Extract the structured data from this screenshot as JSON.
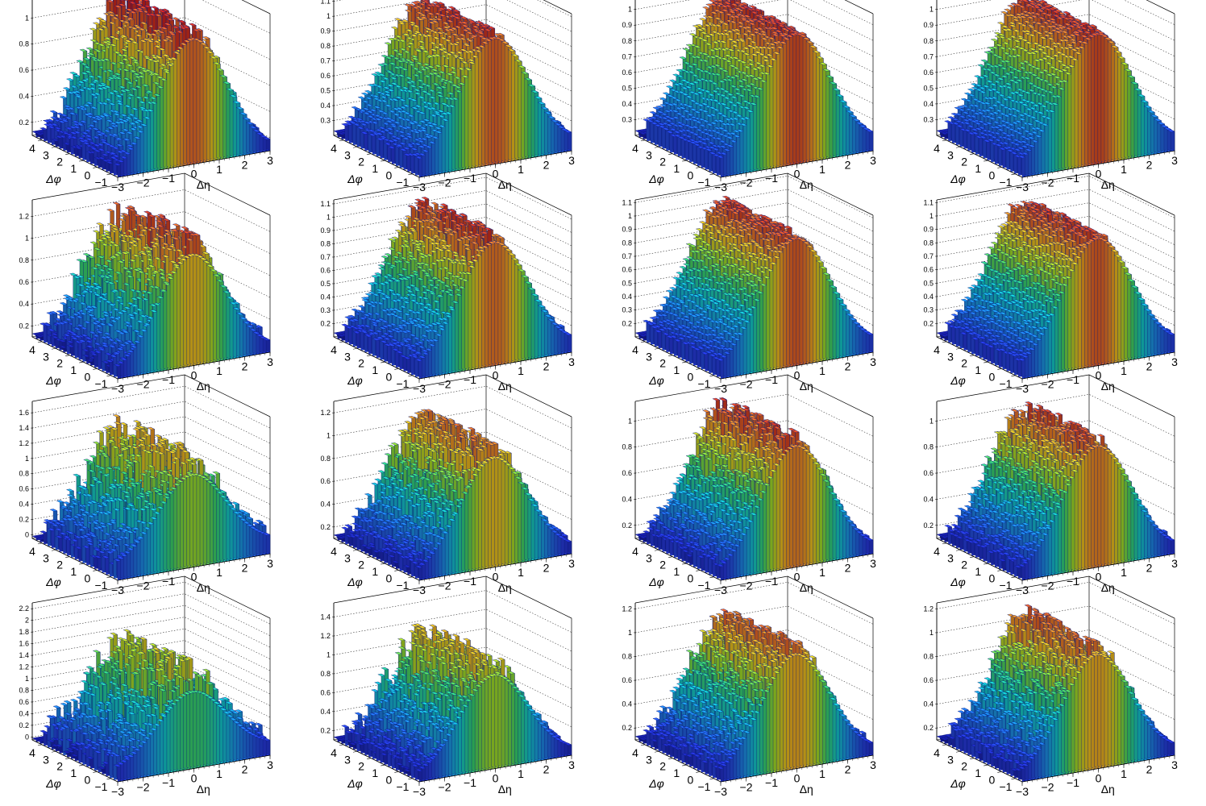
{
  "chart_data": {
    "type": "lego",
    "layout": {
      "rows": 4,
      "cols": 4
    },
    "x_axis": {
      "label": "Δη",
      "range": [
        -3,
        3
      ],
      "ticks": [
        -3,
        -2,
        -1,
        0,
        1,
        2,
        3
      ]
    },
    "y_axis": {
      "label": "Δφ",
      "range": [
        -1.5,
        4.7
      ],
      "ticks": [
        -1,
        0,
        1,
        2,
        3,
        4
      ]
    },
    "colormap": "rainbow",
    "grid": true,
    "panels": [
      {
        "row": 1,
        "col": 1,
        "zlim": [
          0.1,
          1.15
        ],
        "zticks": [
          "0.2",
          "0.4",
          "0.6",
          "0.8",
          "1"
        ],
        "peak": 1.05,
        "base": 0.1,
        "noise": 0.08
      },
      {
        "row": 1,
        "col": 2,
        "zlim": [
          0.2,
          1.12
        ],
        "zticks": [
          "0.3",
          "0.4",
          "0.5",
          "0.6",
          "0.7",
          "0.8",
          "0.9",
          "1",
          "1.1"
        ],
        "peak": 1.04,
        "base": 0.25,
        "noise": 0.04
      },
      {
        "row": 1,
        "col": 3,
        "zlim": [
          0.2,
          1.07
        ],
        "zticks": [
          "0.3",
          "0.4",
          "0.5",
          "0.6",
          "0.7",
          "0.8",
          "0.9",
          "1"
        ],
        "peak": 1.02,
        "base": 0.25,
        "noise": 0.02
      },
      {
        "row": 1,
        "col": 4,
        "zlim": [
          0.2,
          1.07
        ],
        "zticks": [
          "0.3",
          "0.4",
          "0.5",
          "0.6",
          "0.7",
          "0.8",
          "0.9",
          "1"
        ],
        "peak": 1.02,
        "base": 0.25,
        "noise": 0.02
      },
      {
        "row": 2,
        "col": 1,
        "zlim": [
          0.1,
          1.35
        ],
        "zticks": [
          "0.2",
          "0.4",
          "0.6",
          "0.8",
          "1",
          "1.2"
        ],
        "peak": 1.1,
        "base": 0.12,
        "noise": 0.14
      },
      {
        "row": 2,
        "col": 2,
        "zlim": [
          0.1,
          1.13
        ],
        "zticks": [
          "0.2",
          "0.3",
          "0.4",
          "0.5",
          "0.6",
          "0.7",
          "0.8",
          "0.9",
          "1",
          "1.1"
        ],
        "peak": 1.02,
        "base": 0.15,
        "noise": 0.06
      },
      {
        "row": 2,
        "col": 3,
        "zlim": [
          0.1,
          1.12
        ],
        "zticks": [
          "0.2",
          "0.3",
          "0.4",
          "0.5",
          "0.6",
          "0.7",
          "0.8",
          "0.9",
          "1",
          "1.1"
        ],
        "peak": 1.04,
        "base": 0.15,
        "noise": 0.03
      },
      {
        "row": 2,
        "col": 4,
        "zlim": [
          0.1,
          1.12
        ],
        "zticks": [
          "0.2",
          "0.3",
          "0.4",
          "0.5",
          "0.6",
          "0.7",
          "0.8",
          "0.9",
          "1",
          "1.1"
        ],
        "peak": 1.04,
        "base": 0.15,
        "noise": 0.03
      },
      {
        "row": 3,
        "col": 1,
        "zlim": [
          -0.05,
          1.75
        ],
        "zticks": [
          "0",
          "0.2",
          "0.4",
          "0.6",
          "0.8",
          "1",
          "1.2",
          "1.4",
          "1.6"
        ],
        "peak": 1.15,
        "base": 0.1,
        "noise": 0.22
      },
      {
        "row": 3,
        "col": 2,
        "zlim": [
          0.1,
          1.3
        ],
        "zticks": [
          "0.2",
          "0.4",
          "0.6",
          "0.8",
          "1",
          "1.2"
        ],
        "peak": 1.05,
        "base": 0.12,
        "noise": 0.1
      },
      {
        "row": 3,
        "col": 3,
        "zlim": [
          0.1,
          1.15
        ],
        "zticks": [
          "0.2",
          "0.4",
          "0.6",
          "0.8",
          "1"
        ],
        "peak": 1.02,
        "base": 0.12,
        "noise": 0.07
      },
      {
        "row": 3,
        "col": 4,
        "zlim": [
          0.1,
          1.15
        ],
        "zticks": [
          "0.2",
          "0.4",
          "0.6",
          "0.8",
          "1"
        ],
        "peak": 1.02,
        "base": 0.12,
        "noise": 0.06
      },
      {
        "row": 4,
        "col": 1,
        "zlim": [
          -0.05,
          2.3
        ],
        "zticks": [
          "0",
          "0.2",
          "0.4",
          "0.6",
          "0.8",
          "1",
          "1.2",
          "1.4",
          "1.6",
          "1.8",
          "2",
          "2.2"
        ],
        "peak": 1.25,
        "base": 0.1,
        "noise": 0.35
      },
      {
        "row": 4,
        "col": 2,
        "zlim": [
          0.1,
          1.55
        ],
        "zticks": [
          "0.2",
          "0.4",
          "0.6",
          "0.8",
          "1",
          "1.2",
          "1.4"
        ],
        "peak": 1.08,
        "base": 0.12,
        "noise": 0.14
      },
      {
        "row": 4,
        "col": 3,
        "zlim": [
          0.1,
          1.25
        ],
        "zticks": [
          "0.2",
          "0.4",
          "0.6",
          "0.8",
          "1",
          "1.2"
        ],
        "peak": 1.05,
        "base": 0.12,
        "noise": 0.08
      },
      {
        "row": 4,
        "col": 4,
        "zlim": [
          0.1,
          1.25
        ],
        "zticks": [
          "0.2",
          "0.4",
          "0.6",
          "0.8",
          "1",
          "1.2"
        ],
        "peak": 1.05,
        "base": 0.12,
        "noise": 0.08
      }
    ]
  }
}
